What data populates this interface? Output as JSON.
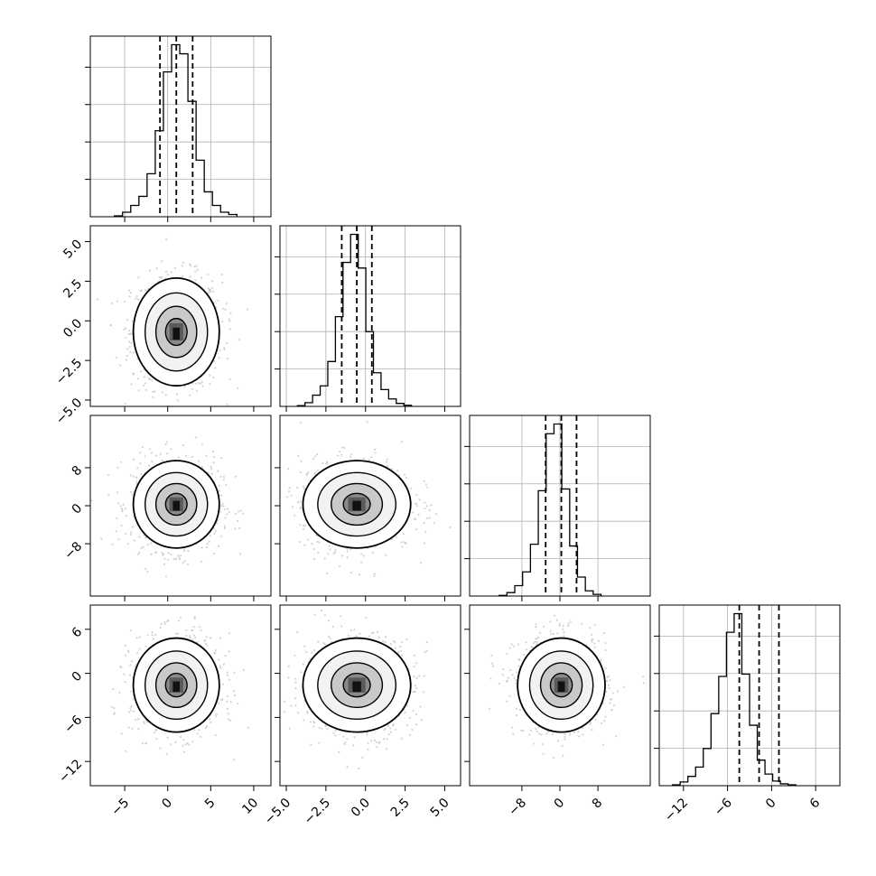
{
  "chart_data": {
    "type": "corner",
    "n_params": 4,
    "params": [
      {
        "range": [
          -9,
          12
        ],
        "ticks": [
          -5,
          0,
          5,
          10
        ],
        "tick_labels": [
          "−5",
          "0",
          "5",
          "10"
        ],
        "quantiles": [
          -0.9,
          1.0,
          2.9
        ],
        "hist": {
          "x_start": -6.2,
          "bin_width": 0.95,
          "counts": [
            0.02,
            0.1,
            0.25,
            0.45,
            0.95,
            1.9,
            3.2,
            3.8,
            3.6,
            2.55,
            1.25,
            0.55,
            0.25,
            0.1,
            0.05
          ]
        }
      },
      {
        "range": [
          -5.4,
          6.0
        ],
        "ticks": [
          -5.0,
          -2.5,
          0.0,
          2.5,
          5.0
        ],
        "tick_labels": [
          "−5.0",
          "−2.5",
          "0.0",
          "2.5",
          "5.0"
        ],
        "quantiles": [
          -1.5,
          -0.55,
          0.4
        ],
        "hist": {
          "x_start": -4.3,
          "bin_width": 0.48,
          "counts": [
            0.02,
            0.1,
            0.3,
            0.55,
            1.2,
            2.4,
            3.85,
            4.6,
            3.7,
            2.0,
            0.9,
            0.45,
            0.2,
            0.08,
            0.03
          ]
        }
      },
      {
        "range": [
          -19,
          19
        ],
        "ticks": [
          -8,
          0,
          8
        ],
        "tick_labels": [
          "−8",
          "0",
          "8"
        ],
        "quantiles": [
          -3.0,
          0.3,
          3.5
        ],
        "hist": {
          "x_start": -12.8,
          "bin_width": 1.65,
          "counts": [
            0.02,
            0.1,
            0.3,
            0.7,
            1.5,
            3.05,
            4.7,
            4.98,
            3.1,
            1.45,
            0.55,
            0.15,
            0.05
          ]
        }
      },
      {
        "range": [
          -15.3,
          9.3
        ],
        "ticks": [
          -12,
          -6,
          0,
          6
        ],
        "tick_labels": [
          "−12",
          "−6",
          "0",
          "6"
        ],
        "quantiles": [
          -4.4,
          -1.7,
          1.0
        ],
        "hist": {
          "x_start": -13.5,
          "bin_width": 1.05,
          "counts": [
            0.02,
            0.08,
            0.2,
            0.4,
            0.8,
            1.55,
            2.35,
            3.3,
            3.7,
            2.4,
            1.3,
            0.55,
            0.25,
            0.1,
            0.04,
            0.02
          ]
        }
      }
    ],
    "pairs": [
      {
        "x": 0,
        "y": 1,
        "center": [
          1.0,
          -0.7
        ],
        "spread": [
          2.5,
          1.7
        ]
      },
      {
        "x": 0,
        "y": 2,
        "center": [
          1.0,
          0.3
        ],
        "spread": [
          2.5,
          4.6
        ]
      },
      {
        "x": 1,
        "y": 2,
        "center": [
          -0.55,
          0.3
        ],
        "spread": [
          1.7,
          4.6
        ]
      },
      {
        "x": 0,
        "y": 3,
        "center": [
          1.0,
          -1.6
        ],
        "spread": [
          2.5,
          3.2
        ]
      },
      {
        "x": 1,
        "y": 3,
        "center": [
          -0.55,
          -1.6
        ],
        "spread": [
          1.7,
          3.2
        ]
      },
      {
        "x": 2,
        "y": 3,
        "center": [
          0.3,
          -1.6
        ],
        "spread": [
          4.6,
          3.2
        ]
      }
    ],
    "grid": true,
    "colors": {
      "line": "#000000",
      "grid": "#b0b0b0",
      "scatter": "#c8c8c8",
      "background": "#ffffff"
    }
  }
}
